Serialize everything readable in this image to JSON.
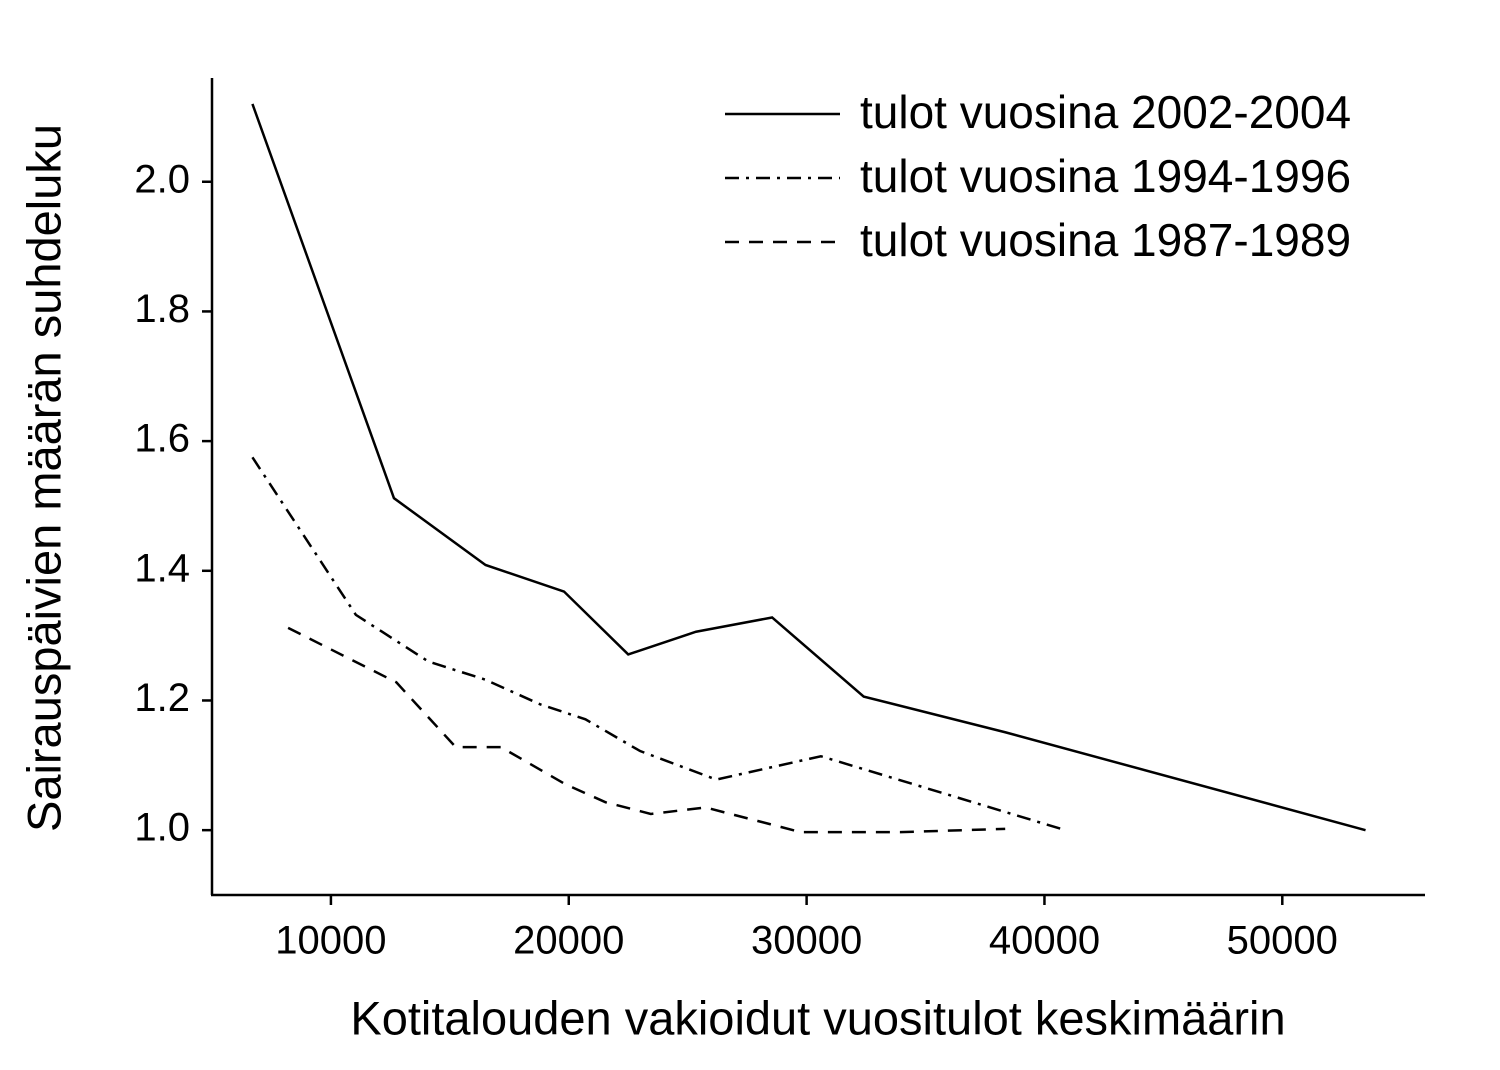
{
  "chart_data": {
    "type": "line",
    "xlabel": "Kotitalouden vakioidut vuositulot keskimäärin",
    "ylabel": "Sairauspäivien määrän suhdeluku",
    "xlim": [
      5000,
      56000
    ],
    "ylim": [
      0.9,
      2.16
    ],
    "xticks": [
      10000,
      20000,
      30000,
      40000,
      50000
    ],
    "yticks": [
      {
        "value": 1.0,
        "label": "1.0"
      },
      {
        "value": 1.2,
        "label": "1.2"
      },
      {
        "value": 1.4,
        "label": "1.4"
      },
      {
        "value": 1.6,
        "label": "1.6"
      },
      {
        "value": 1.8,
        "label": "1.8"
      },
      {
        "value": 2.0,
        "label": "2.0"
      }
    ],
    "grid": false,
    "legend": "upper right",
    "series": [
      {
        "name": "tulot vuosina 2002-2004",
        "color": "#000000",
        "dash": "solid",
        "x": [
          6700,
          12650,
          16500,
          19800,
          22500,
          25350,
          28550,
          32400,
          38350,
          53500
        ],
        "values": [
          2.12,
          1.512,
          1.409,
          1.368,
          1.271,
          1.306,
          1.328,
          1.206,
          1.151,
          1.0
        ]
      },
      {
        "name": "tulot vuosina 1994-1996",
        "color": "#000000",
        "dash": "dashdot",
        "x": [
          6700,
          11050,
          14100,
          16500,
          18800,
          20700,
          23000,
          26200,
          30600,
          40700
        ],
        "values": [
          1.575,
          1.332,
          1.26,
          1.232,
          1.194,
          1.171,
          1.122,
          1.078,
          1.114,
          1.002
        ]
      },
      {
        "name": "tulot vuosina 1987-1989",
        "color": "#000000",
        "dash": "dashed",
        "x": [
          8200,
          12750,
          15250,
          17150,
          19850,
          21550,
          23450,
          25750,
          29750,
          33950,
          38350
        ],
        "values": [
          1.312,
          1.228,
          1.128,
          1.128,
          1.071,
          1.043,
          1.025,
          1.035,
          0.997,
          0.997,
          1.002
        ]
      }
    ]
  }
}
